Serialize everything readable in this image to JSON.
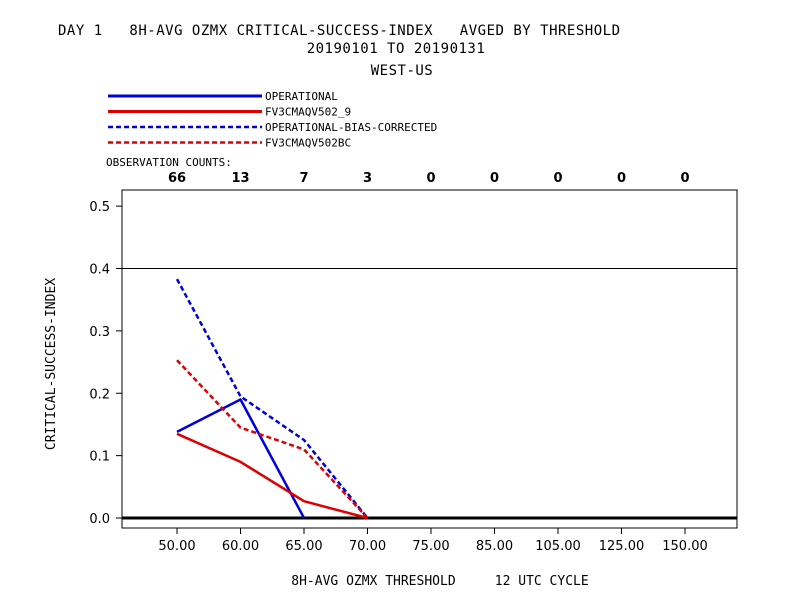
{
  "chart_data": {
    "type": "line",
    "title": "DAY 1   8H-AVG OZMX CRITICAL-SUCCESS-INDEX   AVGED BY THRESHOLD",
    "subtitle1": "20190101 TO 20190131",
    "subtitle2": "WEST-US",
    "xlabel": "8H-AVG OZMX THRESHOLD     12 UTC CYCLE",
    "ylabel": "CRITICAL-SUCCESS-INDEX",
    "categories": [
      "50.00",
      "60.00",
      "65.00",
      "70.00",
      "75.00",
      "85.00",
      "105.00",
      "125.00",
      "150.00"
    ],
    "ylim": [
      0.0,
      0.52
    ],
    "yticks": [
      "0.0",
      "0.1",
      "0.2",
      "0.3",
      "0.4",
      "0.5"
    ],
    "reference_line": 0.4,
    "observation_counts_label": "OBSERVATION COUNTS:",
    "observation_counts": [
      "66",
      "13",
      "7",
      "3",
      "0",
      "0",
      "0",
      "0",
      "0"
    ],
    "legend_placement": "top-left",
    "series": [
      {
        "name": "OPERATIONAL",
        "color": "#0000dd",
        "dashed": false,
        "values": [
          0.138,
          0.19,
          0.0,
          null,
          null,
          null,
          null,
          null,
          null
        ]
      },
      {
        "name": "FV3CMAQV502_9",
        "color": "#dd0000",
        "dashed": false,
        "values": [
          0.135,
          0.09,
          0.027,
          0.0,
          null,
          null,
          null,
          null,
          null
        ]
      },
      {
        "name": "OPERATIONAL-BIAS-CORRECTED",
        "color": "#0000dd",
        "dashed": true,
        "values": [
          0.383,
          0.195,
          0.125,
          0.0,
          null,
          null,
          null,
          null,
          null
        ]
      },
      {
        "name": "FV3CMAQV502BC",
        "color": "#dd0000",
        "dashed": true,
        "values": [
          0.253,
          0.145,
          0.11,
          0.0,
          null,
          null,
          null,
          null,
          null
        ]
      }
    ]
  }
}
